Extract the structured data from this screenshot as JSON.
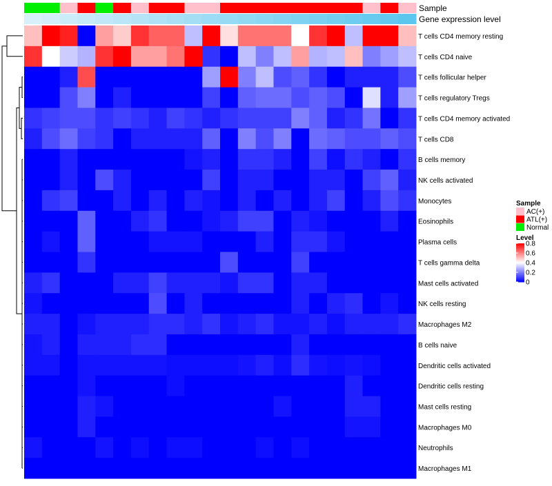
{
  "chart_data": {
    "type": "heatmap",
    "title": "",
    "annotation_tracks": {
      "sample": {
        "label": "Sample",
        "values": [
          "Normal",
          "Normal",
          "AC(+)",
          "ATL(+)",
          "Normal",
          "ATL(+)",
          "AC(+)",
          "ATL(+)",
          "ATL(+)",
          "AC(+)",
          "AC(+)",
          "ATL(+)",
          "ATL(+)",
          "ATL(+)",
          "ATL(+)",
          "ATL(+)",
          "ATL(+)",
          "ATL(+)",
          "ATL(+)",
          "AC(+)",
          "ATL(+)",
          "AC(+)"
        ]
      },
      "expression": {
        "label": "Gene expression level",
        "values": [
          0.05,
          0.09,
          0.14,
          0.18,
          0.23,
          0.27,
          0.32,
          0.36,
          0.41,
          0.45,
          0.5,
          0.55,
          0.59,
          0.64,
          0.68,
          0.73,
          0.77,
          0.82,
          0.86,
          0.91,
          0.95,
          1.0
        ]
      }
    },
    "rows": [
      "T cells CD4 memory resting",
      "T cells CD4 naive",
      "T cells follicular helper",
      "T cells regulatory  Tregs",
      "T cells CD4 memory activated",
      "T cells CD8",
      "B cells memory",
      "NK cells activated",
      "Monocytes",
      "Eosinophils",
      "Plasma cells",
      "T cells gamma delta",
      "Mast cells activated",
      "NK cells resting",
      "Macrophages M2",
      "B cells naive",
      "Dendritic cells activated",
      "Dendritic cells resting",
      "Mast cells resting",
      "Macrophages M0",
      "Neutrophils",
      "Macrophages M1"
    ],
    "values": [
      [
        0.5,
        0.8,
        0.75,
        0.0,
        0.55,
        0.48,
        0.72,
        0.65,
        0.65,
        0.3,
        0.8,
        0.45,
        0.62,
        0.62,
        0.62,
        0.4,
        0.72,
        0.8,
        0.3,
        0.8,
        0.8,
        0.5
      ],
      [
        0.72,
        0.4,
        0.32,
        0.28,
        0.72,
        0.8,
        0.55,
        0.55,
        0.62,
        0.8,
        0.08,
        0.0,
        0.3,
        0.2,
        0.3,
        0.55,
        0.28,
        0.3,
        0.5,
        0.2,
        0.25,
        0.3
      ],
      [
        0.0,
        0.0,
        0.05,
        0.68,
        0.0,
        0.0,
        0.0,
        0.0,
        0.0,
        0.0,
        0.25,
        0.8,
        0.2,
        0.3,
        0.12,
        0.15,
        0.08,
        0.0,
        0.05,
        0.05,
        0.05,
        0.12
      ],
      [
        0.0,
        0.0,
        0.12,
        0.2,
        0.0,
        0.05,
        0.0,
        0.0,
        0.0,
        0.0,
        0.1,
        0.0,
        0.15,
        0.17,
        0.17,
        0.12,
        0.15,
        0.12,
        0.0,
        0.35,
        0.05,
        0.25
      ],
      [
        0.08,
        0.1,
        0.12,
        0.12,
        0.08,
        0.1,
        0.08,
        0.05,
        0.1,
        0.08,
        0.05,
        0.08,
        0.1,
        0.1,
        0.1,
        0.2,
        0.15,
        0.05,
        0.08,
        0.18,
        0.0,
        0.08
      ],
      [
        0.05,
        0.12,
        0.17,
        0.1,
        0.08,
        0.0,
        0.05,
        0.05,
        0.05,
        0.05,
        0.15,
        0.0,
        0.2,
        0.12,
        0.2,
        0.0,
        0.17,
        0.15,
        0.12,
        0.12,
        0.15,
        0.12
      ],
      [
        0.0,
        0.0,
        0.05,
        0.0,
        0.0,
        0.0,
        0.0,
        0.0,
        0.0,
        0.03,
        0.05,
        0.0,
        0.08,
        0.08,
        0.05,
        0.0,
        0.1,
        0.02,
        0.08,
        0.05,
        0.0,
        0.08
      ],
      [
        0.0,
        0.0,
        0.05,
        0.0,
        0.12,
        0.05,
        0.0,
        0.0,
        0.0,
        0.0,
        0.1,
        0.0,
        0.05,
        0.05,
        0.0,
        0.0,
        0.05,
        0.05,
        0.0,
        0.1,
        0.15,
        0.05
      ],
      [
        0.0,
        0.08,
        0.1,
        0.0,
        0.0,
        0.05,
        0.0,
        0.05,
        0.0,
        0.05,
        0.03,
        0.0,
        0.05,
        0.0,
        0.05,
        0.0,
        0.05,
        0.1,
        0.0,
        0.05,
        0.12,
        0.08
      ],
      [
        0.0,
        0.0,
        0.0,
        0.15,
        0.0,
        0.0,
        0.05,
        0.08,
        0.0,
        0.0,
        0.03,
        0.05,
        0.1,
        0.1,
        0.0,
        0.05,
        0.03,
        0.0,
        0.0,
        0.0,
        0.05,
        0.0
      ],
      [
        0.0,
        0.03,
        0.0,
        0.15,
        0.0,
        0.0,
        0.0,
        0.03,
        0.03,
        0.03,
        0.0,
        0.0,
        0.0,
        0.05,
        0.0,
        0.07,
        0.07,
        0.03,
        0.0,
        0.0,
        0.0,
        0.0
      ],
      [
        0.0,
        0.0,
        0.0,
        0.08,
        0.0,
        0.0,
        0.0,
        0.0,
        0.0,
        0.0,
        0.0,
        0.12,
        0.0,
        0.0,
        0.0,
        0.1,
        0.0,
        0.0,
        0.0,
        0.0,
        0.0,
        0.0
      ],
      [
        0.05,
        0.08,
        0.0,
        0.0,
        0.0,
        0.05,
        0.05,
        0.1,
        0.05,
        0.05,
        0.05,
        0.03,
        0.08,
        0.08,
        0.0,
        0.05,
        0.05,
        0.0,
        0.0,
        0.0,
        0.0,
        0.0
      ],
      [
        0.03,
        0.0,
        0.0,
        0.0,
        0.0,
        0.0,
        0.0,
        0.12,
        0.0,
        0.05,
        0.0,
        0.0,
        0.0,
        0.0,
        0.0,
        0.05,
        0.0,
        0.05,
        0.07,
        0.0,
        0.03,
        0.0
      ],
      [
        0.05,
        0.05,
        0.0,
        0.03,
        0.05,
        0.05,
        0.05,
        0.07,
        0.07,
        0.05,
        0.08,
        0.03,
        0.05,
        0.07,
        0.03,
        0.03,
        0.05,
        0.02,
        0.05,
        0.05,
        0.05,
        0.07
      ],
      [
        0.03,
        0.05,
        0.0,
        0.05,
        0.05,
        0.05,
        0.07,
        0.07,
        0.0,
        0.0,
        0.0,
        0.0,
        0.0,
        0.0,
        0.0,
        0.05,
        0.0,
        0.0,
        0.0,
        0.0,
        0.0,
        0.0
      ],
      [
        0.03,
        0.03,
        0.0,
        0.03,
        0.03,
        0.03,
        0.03,
        0.03,
        0.02,
        0.02,
        0.02,
        0.02,
        0.03,
        0.05,
        0.02,
        0.07,
        0.03,
        0.02,
        0.03,
        0.02,
        0.0,
        0.0
      ],
      [
        0.0,
        0.0,
        0.0,
        0.03,
        0.0,
        0.0,
        0.0,
        0.0,
        0.02,
        0.0,
        0.0,
        0.0,
        0.0,
        0.0,
        0.0,
        0.0,
        0.0,
        0.0,
        0.05,
        0.0,
        0.0,
        0.0
      ],
      [
        0.0,
        0.0,
        0.0,
        0.05,
        0.03,
        0.0,
        0.0,
        0.0,
        0.0,
        0.0,
        0.0,
        0.0,
        0.0,
        0.0,
        0.03,
        0.0,
        0.0,
        0.0,
        0.05,
        0.05,
        0.0,
        0.0
      ],
      [
        0.0,
        0.0,
        0.0,
        0.05,
        0.0,
        0.0,
        0.0,
        0.0,
        0.0,
        0.0,
        0.0,
        0.0,
        0.0,
        0.0,
        0.0,
        0.0,
        0.0,
        0.0,
        0.03,
        0.03,
        0.0,
        0.0
      ],
      [
        0.03,
        0.0,
        0.0,
        0.0,
        0.03,
        0.0,
        0.02,
        0.0,
        0.02,
        0.02,
        0.0,
        0.0,
        0.0,
        0.02,
        0.0,
        0.02,
        0.0,
        0.0,
        0.0,
        0.0,
        0.0,
        0.0
      ],
      [
        0.0,
        0.0,
        0.0,
        0.0,
        0.0,
        0.0,
        0.0,
        0.0,
        0.0,
        0.0,
        0.0,
        0.0,
        0.0,
        0.0,
        0.0,
        0.0,
        0.0,
        0.0,
        0.0,
        0.0,
        0.0,
        0.0
      ]
    ],
    "value_range": [
      0,
      0.8
    ],
    "legend": {
      "sample_title": "Sample",
      "sample_entries": [
        {
          "label": "AC(+)",
          "color": "#ffc0cb"
        },
        {
          "label": "ATL(+)",
          "color": "#ff0000"
        },
        {
          "label": "Normal",
          "color": "#00ee00"
        }
      ],
      "level_title": "Level",
      "level_ticks": [
        "0.8",
        "0.6",
        "0.4",
        "0.2",
        "0"
      ],
      "level_tick_values": [
        0.8,
        0.6,
        0.4,
        0.2,
        0
      ]
    },
    "colors": {
      "low": "#0000ff",
      "mid": "#ffffff",
      "high": "#ff0000",
      "expr_low": "#dff2fb",
      "expr_high": "#5bc6ee"
    },
    "dendrogram": {
      "merges": [
        [
          0,
          1
        ],
        [
          2,
          3
        ],
        [
          4,
          5
        ],
        [
          6,
          7
        ],
        [
          8,
          9
        ],
        [
          10,
          11
        ],
        [
          12,
          13
        ],
        [
          14,
          15
        ],
        [
          16,
          17
        ],
        [
          18,
          19
        ],
        [
          20,
          21
        ]
      ]
    }
  }
}
